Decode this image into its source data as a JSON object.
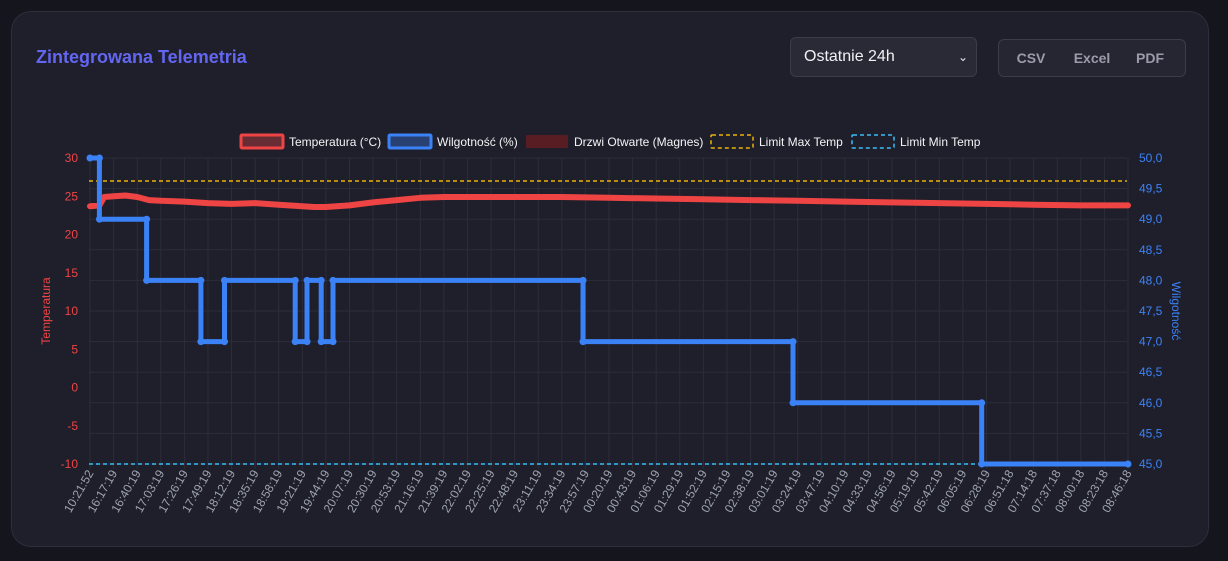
{
  "header": {
    "title": "Zintegrowana Telemetria",
    "range_select": {
      "selected": "Ostatnie 24h"
    },
    "export": [
      "CSV",
      "Excel",
      "PDF"
    ]
  },
  "colors": {
    "page_bg": "#15151e",
    "card_bg": "#1f1f2b",
    "title": "#6366f1",
    "temperature": "#ef4444",
    "humidity": "#3b82f6",
    "door": "#7f1d1d",
    "limit_max": "#eab308",
    "limit_min": "#38bdf8",
    "grid": "#2d2d3a"
  },
  "chart_data": {
    "type": "line",
    "title": "",
    "legend_position": "top",
    "grid": true,
    "legend": [
      {
        "label": "Temperatura (°C)",
        "color": "#ef4444",
        "style": "solid"
      },
      {
        "label": "Wilgotność (%)",
        "color": "#3b82f6",
        "style": "solid"
      },
      {
        "label": "Drzwi Otwarte (Magnes)",
        "color": "#7f1d1d",
        "style": "fill"
      },
      {
        "label": "Limit Max Temp",
        "color": "#eab308",
        "style": "dashed"
      },
      {
        "label": "Limit Min Temp",
        "color": "#38bdf8",
        "style": "dashed"
      }
    ],
    "y_left": {
      "label": "Temperatura",
      "ylim": [
        -10,
        30
      ],
      "ticks": [
        "30",
        "25",
        "20",
        "15",
        "10",
        "5",
        "0",
        "-5",
        "-10"
      ]
    },
    "y_right": {
      "label": "Wilgotność",
      "ylim": [
        45.0,
        50.0
      ],
      "ticks": [
        "50,0",
        "49,5",
        "49,0",
        "48,5",
        "48,0",
        "47,5",
        "47,0",
        "46,5",
        "46,0",
        "45,5",
        "45,0"
      ]
    },
    "x_labels": [
      "10:21:52",
      "16:17:19",
      "16:40:19",
      "17:03:19",
      "17:26:19",
      "17:49:19",
      "18:12:19",
      "18:35:19",
      "18:58:19",
      "19:21:19",
      "19:44:19",
      "20:07:19",
      "20:30:19",
      "20:53:19",
      "21:16:19",
      "21:39:19",
      "22:02:19",
      "22:25:19",
      "22:48:19",
      "23:11:19",
      "23:34:19",
      "23:57:19",
      "00:20:19",
      "00:43:19",
      "01:06:19",
      "01:29:19",
      "01:52:19",
      "02:15:19",
      "02:38:19",
      "03:01:19",
      "03:24:19",
      "03:47:19",
      "04:10:19",
      "04:33:19",
      "04:56:19",
      "05:19:19",
      "05:42:19",
      "06:05:19",
      "06:28:19",
      "06:51:18",
      "07:14:18",
      "07:37:18",
      "08:00:18",
      "08:23:18",
      "08:46:18"
    ],
    "limits": {
      "max_temp": 27,
      "min_temp": -10
    },
    "series": [
      {
        "name": "Temperatura (°C)",
        "axis": "left",
        "x": [
          0,
          0.4,
          0.6,
          1,
          1.5,
          2,
          2.5,
          3,
          4,
          5,
          6,
          7,
          8,
          9,
          9.5,
          10,
          11,
          12,
          13,
          14,
          15,
          16,
          18,
          20,
          22,
          24,
          26,
          28,
          30,
          32,
          34,
          36,
          38,
          40,
          42,
          44
        ],
        "values": [
          23.7,
          23.8,
          24.9,
          25.0,
          25.1,
          24.9,
          24.5,
          24.4,
          24.3,
          24.1,
          24.0,
          24.1,
          23.9,
          23.7,
          23.6,
          23.6,
          23.8,
          24.2,
          24.5,
          24.8,
          24.9,
          24.9,
          24.9,
          24.9,
          24.8,
          24.7,
          24.6,
          24.5,
          24.4,
          24.3,
          24.2,
          24.1,
          24.0,
          23.9,
          23.8,
          23.8
        ]
      },
      {
        "name": "Wilgotność (%)",
        "axis": "right",
        "x": [
          0,
          0.4,
          0.4,
          2.4,
          2.4,
          4.7,
          4.7,
          5.7,
          5.7,
          8.7,
          8.7,
          9.2,
          9.2,
          9.8,
          9.8,
          10.3,
          10.3,
          20.9,
          20.9,
          29.8,
          29.8,
          37.8,
          37.8,
          44
        ],
        "values": [
          50.0,
          50.0,
          49.0,
          49.0,
          48.0,
          48.0,
          47.0,
          47.0,
          48.0,
          48.0,
          47.0,
          47.0,
          48.0,
          48.0,
          47.0,
          47.0,
          48.0,
          48.0,
          47.0,
          47.0,
          46.0,
          46.0,
          45.0,
          45.0
        ]
      }
    ]
  }
}
